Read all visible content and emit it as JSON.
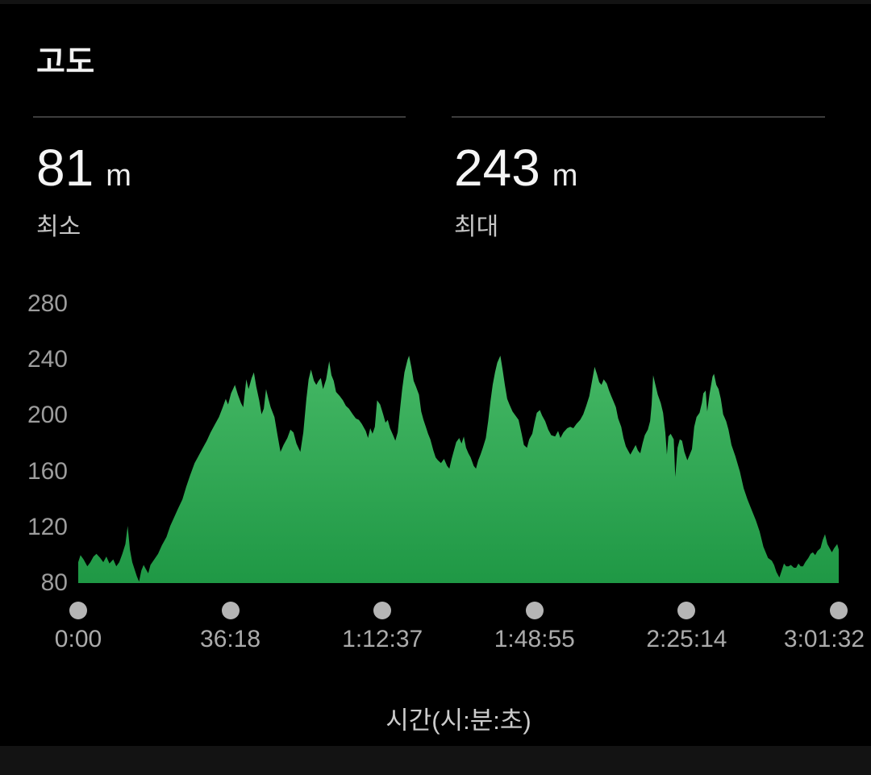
{
  "header": {
    "title": "고도"
  },
  "stats": {
    "min": {
      "value": "81",
      "unit": "m",
      "label": "최소"
    },
    "max": {
      "value": "243",
      "unit": "m",
      "label": "최대"
    }
  },
  "colors": {
    "background": "#000000",
    "edge_strip": "#131313",
    "area_top": "#45b865",
    "area_bottom": "#1f9845",
    "axis_text": "#9d9d9d",
    "tick_dot": "#b5b5b5",
    "divider": "#3d3d3d"
  },
  "chart_data": {
    "type": "area",
    "title": "고도",
    "xlabel": "시간(시:분:초)",
    "ylabel": "m",
    "ylim": [
      80,
      280
    ],
    "y_ticks": [
      280,
      240,
      200,
      160,
      120,
      80
    ],
    "x_ticks": [
      "0:00",
      "36:18",
      "1:12:37",
      "1:48:55",
      "2:25:14",
      "3:01:32"
    ],
    "total_duration": "3:01:32",
    "min_elevation_m": 81,
    "max_elevation_m": 243,
    "grid": false,
    "legend": "none",
    "series": [
      {
        "name": "elevation",
        "unit": "m",
        "x_unit": "fraction_of_total_duration",
        "points": [
          [
            0,
            95
          ],
          [
            0.003,
            100
          ],
          [
            0.007,
            97
          ],
          [
            0.012,
            92
          ],
          [
            0.016,
            95
          ],
          [
            0.02,
            99
          ],
          [
            0.024,
            101
          ],
          [
            0.029,
            98
          ],
          [
            0.033,
            95
          ],
          [
            0.037,
            99
          ],
          [
            0.041,
            94
          ],
          [
            0.046,
            97
          ],
          [
            0.05,
            92
          ],
          [
            0.054,
            95
          ],
          [
            0.058,
            101
          ],
          [
            0.062,
            108
          ],
          [
            0.065,
            121
          ],
          [
            0.068,
            104
          ],
          [
            0.071,
            95
          ],
          [
            0.074,
            90
          ],
          [
            0.077,
            85
          ],
          [
            0.08,
            81
          ],
          [
            0.083,
            89
          ],
          [
            0.086,
            93
          ],
          [
            0.089,
            90
          ],
          [
            0.092,
            87
          ],
          [
            0.095,
            93
          ],
          [
            0.1,
            97
          ],
          [
            0.105,
            101
          ],
          [
            0.11,
            107
          ],
          [
            0.116,
            113
          ],
          [
            0.121,
            121
          ],
          [
            0.126,
            127
          ],
          [
            0.131,
            133
          ],
          [
            0.137,
            140
          ],
          [
            0.142,
            149
          ],
          [
            0.147,
            157
          ],
          [
            0.153,
            166
          ],
          [
            0.158,
            171
          ],
          [
            0.163,
            176
          ],
          [
            0.169,
            182
          ],
          [
            0.174,
            188
          ],
          [
            0.179,
            193
          ],
          [
            0.185,
            199
          ],
          [
            0.19,
            206
          ],
          [
            0.194,
            212
          ],
          [
            0.197,
            208
          ],
          [
            0.201,
            216
          ],
          [
            0.206,
            222
          ],
          [
            0.21,
            215
          ],
          [
            0.214,
            209
          ],
          [
            0.217,
            206
          ],
          [
            0.221,
            226
          ],
          [
            0.224,
            219
          ],
          [
            0.228,
            227
          ],
          [
            0.231,
            231
          ],
          [
            0.234,
            221
          ],
          [
            0.238,
            211
          ],
          [
            0.241,
            201
          ],
          [
            0.244,
            205
          ],
          [
            0.247,
            219
          ],
          [
            0.25,
            212
          ],
          [
            0.253,
            206
          ],
          [
            0.258,
            199
          ],
          [
            0.262,
            186
          ],
          [
            0.266,
            174
          ],
          [
            0.27,
            179
          ],
          [
            0.275,
            184
          ],
          [
            0.279,
            190
          ],
          [
            0.283,
            188
          ],
          [
            0.287,
            180
          ],
          [
            0.292,
            174
          ],
          [
            0.296,
            188
          ],
          [
            0.3,
            212
          ],
          [
            0.303,
            226
          ],
          [
            0.306,
            233
          ],
          [
            0.31,
            225
          ],
          [
            0.313,
            222
          ],
          [
            0.316,
            225
          ],
          [
            0.319,
            227
          ],
          [
            0.322,
            219
          ],
          [
            0.326,
            226
          ],
          [
            0.33,
            239
          ],
          [
            0.333,
            229
          ],
          [
            0.336,
            225
          ],
          [
            0.339,
            217
          ],
          [
            0.344,
            214
          ],
          [
            0.348,
            211
          ],
          [
            0.352,
            207
          ],
          [
            0.356,
            205
          ],
          [
            0.361,
            201
          ],
          [
            0.365,
            198
          ],
          [
            0.369,
            197
          ],
          [
            0.373,
            194
          ],
          [
            0.378,
            189
          ],
          [
            0.381,
            184
          ],
          [
            0.384,
            191
          ],
          [
            0.387,
            187
          ],
          [
            0.39,
            192
          ],
          [
            0.393,
            211
          ],
          [
            0.397,
            208
          ],
          [
            0.401,
            201
          ],
          [
            0.404,
            195
          ],
          [
            0.407,
            197
          ],
          [
            0.41,
            191
          ],
          [
            0.414,
            186
          ],
          [
            0.417,
            182
          ],
          [
            0.42,
            188
          ],
          [
            0.423,
            204
          ],
          [
            0.426,
            219
          ],
          [
            0.429,
            231
          ],
          [
            0.433,
            240
          ],
          [
            0.435,
            243
          ],
          [
            0.438,
            235
          ],
          [
            0.441,
            225
          ],
          [
            0.444,
            221
          ],
          [
            0.448,
            215
          ],
          [
            0.451,
            203
          ],
          [
            0.454,
            197
          ],
          [
            0.457,
            192
          ],
          [
            0.46,
            187
          ],
          [
            0.463,
            183
          ],
          [
            0.467,
            175
          ],
          [
            0.47,
            170
          ],
          [
            0.473,
            168
          ],
          [
            0.477,
            166
          ],
          [
            0.481,
            169
          ],
          [
            0.485,
            164
          ],
          [
            0.488,
            162
          ],
          [
            0.491,
            169
          ],
          [
            0.494,
            175
          ],
          [
            0.497,
            181
          ],
          [
            0.501,
            184
          ],
          [
            0.504,
            180
          ],
          [
            0.507,
            185
          ],
          [
            0.51,
            177
          ],
          [
            0.513,
            173
          ],
          [
            0.516,
            170
          ],
          [
            0.52,
            164
          ],
          [
            0.523,
            162
          ],
          [
            0.526,
            168
          ],
          [
            0.529,
            172
          ],
          [
            0.532,
            177
          ],
          [
            0.536,
            184
          ],
          [
            0.539,
            196
          ],
          [
            0.542,
            210
          ],
          [
            0.545,
            222
          ],
          [
            0.548,
            231
          ],
          [
            0.551,
            238
          ],
          [
            0.555,
            243
          ],
          [
            0.558,
            233
          ],
          [
            0.561,
            222
          ],
          [
            0.564,
            212
          ],
          [
            0.567,
            208
          ],
          [
            0.571,
            203
          ],
          [
            0.575,
            200
          ],
          [
            0.579,
            197
          ],
          [
            0.583,
            187
          ],
          [
            0.586,
            179
          ],
          [
            0.59,
            177
          ],
          [
            0.593,
            183
          ],
          [
            0.597,
            187
          ],
          [
            0.6,
            195
          ],
          [
            0.603,
            202
          ],
          [
            0.607,
            204
          ],
          [
            0.61,
            200
          ],
          [
            0.614,
            196
          ],
          [
            0.618,
            190
          ],
          [
            0.622,
            186
          ],
          [
            0.627,
            185
          ],
          [
            0.631,
            189
          ],
          [
            0.634,
            184
          ],
          [
            0.638,
            188
          ],
          [
            0.643,
            191
          ],
          [
            0.647,
            192
          ],
          [
            0.651,
            191
          ],
          [
            0.655,
            194
          ],
          [
            0.66,
            197
          ],
          [
            0.664,
            201
          ],
          [
            0.668,
            207
          ],
          [
            0.672,
            214
          ],
          [
            0.676,
            226
          ],
          [
            0.679,
            235
          ],
          [
            0.682,
            230
          ],
          [
            0.685,
            224
          ],
          [
            0.688,
            222
          ],
          [
            0.691,
            226
          ],
          [
            0.695,
            223
          ],
          [
            0.698,
            218
          ],
          [
            0.701,
            214
          ],
          [
            0.704,
            210
          ],
          [
            0.707,
            206
          ],
          [
            0.71,
            198
          ],
          [
            0.714,
            192
          ],
          [
            0.717,
            184
          ],
          [
            0.72,
            178
          ],
          [
            0.723,
            175
          ],
          [
            0.726,
            172
          ],
          [
            0.73,
            176
          ],
          [
            0.733,
            179
          ],
          [
            0.736,
            175
          ],
          [
            0.739,
            173
          ],
          [
            0.742,
            180
          ],
          [
            0.745,
            186
          ],
          [
            0.749,
            190
          ],
          [
            0.752,
            196
          ],
          [
            0.754,
            208
          ],
          [
            0.756,
            229
          ],
          [
            0.759,
            222
          ],
          [
            0.762,
            215
          ],
          [
            0.766,
            209
          ],
          [
            0.769,
            202
          ],
          [
            0.772,
            188
          ],
          [
            0.774,
            172
          ],
          [
            0.776,
            185
          ],
          [
            0.779,
            187
          ],
          [
            0.783,
            183
          ],
          [
            0.785,
            156
          ],
          [
            0.788,
            177
          ],
          [
            0.791,
            183
          ],
          [
            0.794,
            182
          ],
          [
            0.797,
            174
          ],
          [
            0.801,
            168
          ],
          [
            0.804,
            172
          ],
          [
            0.807,
            176
          ],
          [
            0.81,
            192
          ],
          [
            0.813,
            199
          ],
          [
            0.817,
            202
          ],
          [
            0.82,
            209
          ],
          [
            0.822,
            216
          ],
          [
            0.825,
            218
          ],
          [
            0.827,
            203
          ],
          [
            0.83,
            215
          ],
          [
            0.834,
            228
          ],
          [
            0.836,
            230
          ],
          [
            0.839,
            222
          ],
          [
            0.842,
            219
          ],
          [
            0.845,
            212
          ],
          [
            0.848,
            201
          ],
          [
            0.852,
            196
          ],
          [
            0.855,
            190
          ],
          [
            0.859,
            179
          ],
          [
            0.864,
            171
          ],
          [
            0.87,
            160
          ],
          [
            0.875,
            148
          ],
          [
            0.88,
            140
          ],
          [
            0.885,
            133
          ],
          [
            0.891,
            125
          ],
          [
            0.896,
            117
          ],
          [
            0.901,
            106
          ],
          [
            0.907,
            98
          ],
          [
            0.912,
            96
          ],
          [
            0.915,
            93
          ],
          [
            0.918,
            88
          ],
          [
            0.922,
            84
          ],
          [
            0.925,
            89
          ],
          [
            0.928,
            94
          ],
          [
            0.931,
            92
          ],
          [
            0.934,
            92
          ],
          [
            0.937,
            93
          ],
          [
            0.941,
            91
          ],
          [
            0.944,
            91
          ],
          [
            0.947,
            94
          ],
          [
            0.95,
            92
          ],
          [
            0.953,
            92
          ],
          [
            0.956,
            95
          ],
          [
            0.96,
            98
          ],
          [
            0.963,
            101
          ],
          [
            0.966,
            102
          ],
          [
            0.969,
            100
          ],
          [
            0.972,
            103
          ],
          [
            0.976,
            105
          ],
          [
            0.979,
            111
          ],
          [
            0.982,
            115
          ],
          [
            0.985,
            108
          ],
          [
            0.988,
            105
          ],
          [
            0.991,
            102
          ],
          [
            0.994,
            105
          ],
          [
            0.998,
            108
          ],
          [
            1,
            104
          ]
        ]
      }
    ]
  }
}
